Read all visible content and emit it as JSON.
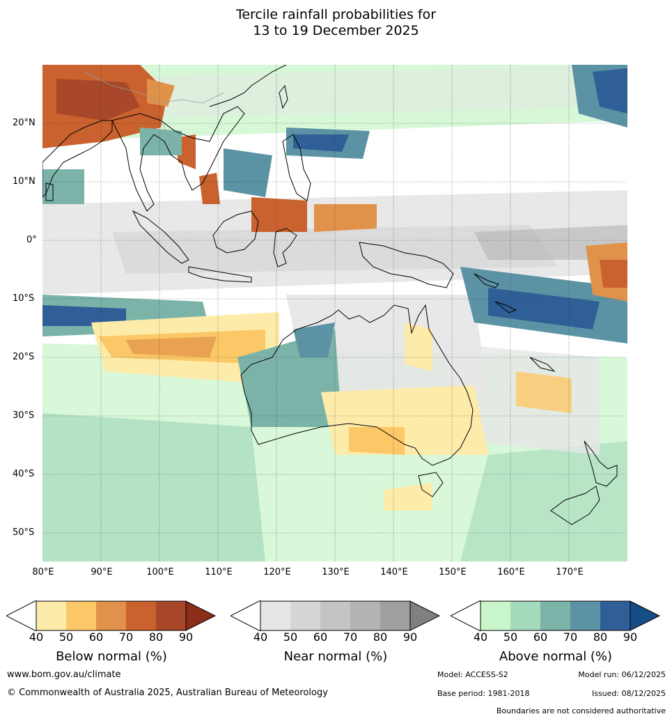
{
  "title": {
    "line1": "Tercile rainfall probabilities for",
    "line2": "13 to 19 December 2025"
  },
  "map": {
    "lat_labels": [
      "20°N",
      "10°N",
      "0°",
      "10°S",
      "20°S",
      "30°S",
      "40°S",
      "50°S"
    ],
    "lon_labels": [
      "80°E",
      "90°E",
      "100°E",
      "110°E",
      "120°E",
      "130°E",
      "140°E",
      "150°E",
      "160°E",
      "170°E"
    ],
    "lon_range": [
      80,
      180
    ],
    "lat_range": [
      -55,
      30
    ]
  },
  "legends": {
    "ticks": [
      "40",
      "50",
      "60",
      "70",
      "80",
      "90"
    ],
    "below": {
      "title": "Below normal (%)",
      "colors": [
        "#ffffff",
        "#fdebaa",
        "#fcc867",
        "#e0924a",
        "#c9622e",
        "#a8472a",
        "#8a2e1a"
      ]
    },
    "near": {
      "title": "Near normal (%)",
      "colors": [
        "#ffffff",
        "#e6e6e6",
        "#d6d6d6",
        "#c4c4c4",
        "#b3b3b3",
        "#a0a0a0",
        "#808080"
      ]
    },
    "above": {
      "title": "Above normal (%)",
      "colors": [
        "#ffffff",
        "#c8f5c9",
        "#a5d9bb",
        "#7bb3a9",
        "#5b93a4",
        "#2f5f96",
        "#164d86"
      ]
    }
  },
  "footer": {
    "url": "www.bom.gov.au/climate",
    "copyright": "© Commonwealth of Australia 2025, Australian Bureau of Meteorology",
    "model": "Model: ACCESS-S2",
    "model_run": "Model run: 06/12/2025",
    "base_period": "Base period: 1981-2018",
    "issued": "Issued: 08/12/2025",
    "disclaimer": "Boundaries are not considered authoritative"
  }
}
